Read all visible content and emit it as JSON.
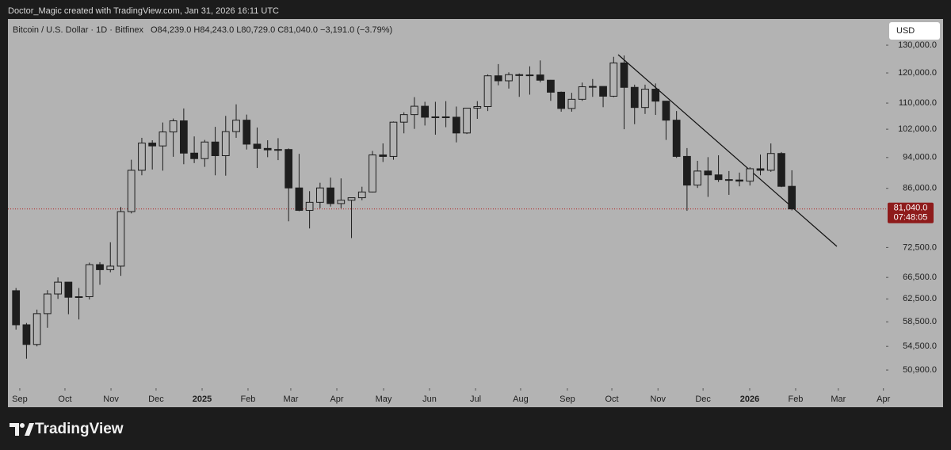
{
  "chart_data": {
    "type": "candlestick",
    "attribution": "Doctor_Magic created with TradingView.com, Jan 31, 2026 16:11 UTC",
    "title": "Bitcoin / U.S. Dollar · 1D · Bitfinex",
    "legend_ohlc": "O84,239.0 H84,243.0 L80,729.0 C81,040.0 −3,191.0 (−3.79%)",
    "currency": "USD",
    "brand": "TradingView",
    "last_price": {
      "value": 81040,
      "label": "81,040.0"
    },
    "countdown": "07:48:05",
    "color": "#1e1e1e",
    "log_scale": true,
    "grid": false,
    "ylim": [
      48300,
      140200
    ],
    "yticks": [
      {
        "value": 50900,
        "label": "50,900.0"
      },
      {
        "value": 54500,
        "label": "54,500.0"
      },
      {
        "value": 58500,
        "label": "58,500.0"
      },
      {
        "value": 62500,
        "label": "62,500.0"
      },
      {
        "value": 66500,
        "label": "66,500.0"
      },
      {
        "value": 72500,
        "label": "72,500.0"
      },
      {
        "value": 86000,
        "label": "86,000.0"
      },
      {
        "value": 94000,
        "label": "94,000.0"
      },
      {
        "value": 102000,
        "label": "102,000.0"
      },
      {
        "value": 110000,
        "label": "110,000.0"
      },
      {
        "value": 120000,
        "label": "120,000.0"
      },
      {
        "value": 130000,
        "label": "130,000.0"
      }
    ],
    "xlim": [
      -0.27,
      83.48
    ],
    "xticks": [
      {
        "value": 0.86,
        "label": "Sep"
      },
      {
        "value": 5.17,
        "label": "Oct"
      },
      {
        "value": 9.56,
        "label": "Nov"
      },
      {
        "value": 13.86,
        "label": "Dec"
      },
      {
        "value": 18.25,
        "label": "2025"
      },
      {
        "value": 22.63,
        "label": "Feb"
      },
      {
        "value": 26.71,
        "label": "Mar"
      },
      {
        "value": 31.1,
        "label": "Apr"
      },
      {
        "value": 35.56,
        "label": "May"
      },
      {
        "value": 39.94,
        "label": "Jun"
      },
      {
        "value": 44.33,
        "label": "Jul"
      },
      {
        "value": 48.63,
        "label": "Aug"
      },
      {
        "value": 53.09,
        "label": "Sep"
      },
      {
        "value": 57.33,
        "label": "Oct"
      },
      {
        "value": 61.73,
        "label": "Nov"
      },
      {
        "value": 66.03,
        "label": "Dec"
      },
      {
        "value": 70.48,
        "label": "2026"
      },
      {
        "value": 74.86,
        "label": "Feb"
      },
      {
        "value": 78.93,
        "label": "Mar"
      },
      {
        "value": 83.23,
        "label": "Apr"
      }
    ],
    "open": [
      64000,
      58000,
      54800,
      59900,
      63400,
      65600,
      62800,
      62900,
      69000,
      68000,
      68700,
      80400,
      90600,
      98000,
      97200,
      101200,
      104500,
      95200,
      93700,
      98300,
      94500,
      101300,
      104700,
      97700,
      96500,
      96100,
      96200,
      86100,
      80700,
      82600,
      86100,
      82300,
      83100,
      83700,
      85100,
      94700,
      94300,
      104100,
      106400,
      109000,
      105600,
      105700,
      105600,
      100900,
      108400,
      108900,
      119000,
      117300,
      119400,
      119100,
      119300,
      117500,
      113500,
      108300,
      111200,
      115300,
      115400,
      112200,
      123500,
      115100,
      108600,
      114500,
      110600,
      104700,
      94300,
      86800,
      90400,
      89400,
      88200,
      88100,
      87800,
      91000,
      90600,
      95100,
      86500
    ],
    "high": [
      64500,
      58300,
      60600,
      64100,
      66500,
      65600,
      64500,
      69400,
      69500,
      73600,
      81500,
      93400,
      99500,
      98800,
      104000,
      105200,
      108300,
      99900,
      98900,
      102700,
      106000,
      109600,
      106400,
      102500,
      98800,
      99400,
      96500,
      95000,
      85300,
      87400,
      88700,
      88500,
      83500,
      86400,
      95800,
      97900,
      104300,
      107100,
      111900,
      110400,
      110400,
      110600,
      108900,
      108500,
      110600,
      119500,
      123100,
      120200,
      119800,
      122300,
      124400,
      117600,
      113700,
      113300,
      116700,
      117900,
      115400,
      125700,
      126200,
      116000,
      116000,
      116400,
      110700,
      107500,
      96600,
      93100,
      94100,
      94600,
      90400,
      90000,
      91400,
      94800,
      97900,
      95500,
      90600
    ],
    "low": [
      57200,
      52600,
      54500,
      57500,
      62500,
      59800,
      58900,
      62400,
      65100,
      67500,
      66800,
      80000,
      89300,
      90800,
      90500,
      94200,
      92200,
      92500,
      91500,
      89300,
      89200,
      99500,
      96200,
      91200,
      94100,
      93300,
      78200,
      80500,
      76600,
      81200,
      81600,
      81200,
      74500,
      83100,
      85000,
      92800,
      93400,
      100800,
      102100,
      103100,
      100400,
      102600,
      98200,
      100600,
      105100,
      107500,
      115800,
      114700,
      112000,
      112700,
      116800,
      110700,
      107300,
      107300,
      110700,
      112000,
      108700,
      111900,
      102000,
      103500,
      106600,
      106300,
      98900,
      93900,
      80600,
      86100,
      83900,
      87600,
      84400,
      86500,
      86700,
      89300,
      90200,
      86300,
      80700
    ],
    "close": [
      58000,
      54800,
      59900,
      63400,
      65600,
      62800,
      62900,
      69000,
      68000,
      68700,
      80400,
      90600,
      98000,
      97200,
      101200,
      104500,
      95200,
      93700,
      98300,
      94500,
      101300,
      104700,
      97700,
      96500,
      96100,
      96200,
      86100,
      80700,
      82600,
      86100,
      82300,
      83100,
      83700,
      85100,
      94700,
      94300,
      104100,
      106400,
      109000,
      105600,
      105700,
      105600,
      100900,
      108400,
      108900,
      119000,
      117300,
      119400,
      119100,
      119300,
      117500,
      113500,
      108300,
      111200,
      115300,
      115400,
      112200,
      123500,
      115100,
      108600,
      114500,
      110600,
      104700,
      94300,
      86800,
      90400,
      89400,
      88200,
      88100,
      87800,
      91000,
      90600,
      95100,
      86500,
      81040
    ]
  }
}
